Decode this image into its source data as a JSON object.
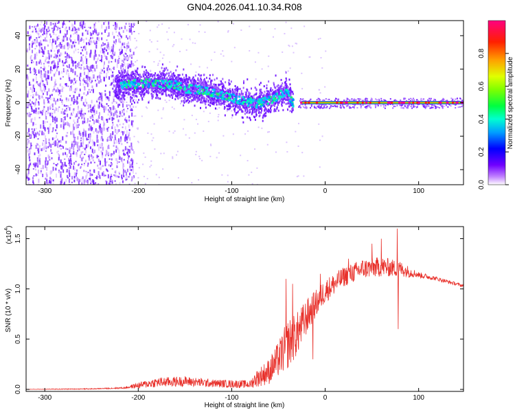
{
  "title": "GN04.2026.041.10.34.R08",
  "chart_data": [
    {
      "type": "heatmap",
      "id": "spectrogram",
      "xlabel": "Height of straight line (km)",
      "ylabel": "Frequency (Hz)",
      "xlim": [
        -320,
        148
      ],
      "ylim": [
        -49,
        49
      ],
      "x_ticks": [
        -300,
        -200,
        -100,
        0,
        100
      ],
      "x_tick_labels": [
        "-300",
        "-200",
        "-100",
        "0",
        "100"
      ],
      "y_ticks": [
        -40,
        -20,
        0,
        20,
        40
      ],
      "y_tick_labels": [
        "-40",
        "-20",
        "0",
        "20",
        "40"
      ],
      "noise_region_x": [
        -320,
        -205
      ],
      "scatter_region_x": [
        -205,
        0
      ],
      "signal_frequency_track": [
        {
          "x": -220,
          "y": 11
        },
        {
          "x": -200,
          "y": 12
        },
        {
          "x": -180,
          "y": 12
        },
        {
          "x": -160,
          "y": 11
        },
        {
          "x": -150,
          "y": 9
        },
        {
          "x": -130,
          "y": 8
        },
        {
          "x": -110,
          "y": 5
        },
        {
          "x": -90,
          "y": 2
        },
        {
          "x": -75,
          "y": 0
        },
        {
          "x": -60,
          "y": 2
        },
        {
          "x": -50,
          "y": 5
        },
        {
          "x": -42,
          "y": 7
        },
        {
          "x": -35,
          "y": 0
        },
        {
          "x": -25,
          "y": -1
        },
        {
          "x": -10,
          "y": 0
        },
        {
          "x": 0,
          "y": 0
        },
        {
          "x": 148,
          "y": 0
        }
      ],
      "constant_line_x": [
        0,
        148
      ],
      "constant_line_y": 0,
      "grid": false
    },
    {
      "type": "colorbar",
      "id": "amplitude-colorbar",
      "label": "Normalized spectral amplitude",
      "range": [
        0,
        1
      ],
      "ticks": [
        0.0,
        0.2,
        0.4,
        0.6,
        0.8
      ],
      "tick_labels": [
        "0.0",
        "0.2",
        "0.4",
        "0.6",
        "0.8"
      ],
      "colors": [
        "#ffffff",
        "#b060ff",
        "#6000ff",
        "#0000ff",
        "#00c0ff",
        "#00ff80",
        "#40ff00",
        "#d0ff00",
        "#ffa000",
        "#ff2000",
        "#ff0080"
      ]
    },
    {
      "type": "line",
      "id": "snr",
      "xlabel": "Height of straight line (km)",
      "ylabel": "SNR (10 * v/v)",
      "y_multiplier_label": "(x10",
      "y_multiplier_exp": "4",
      "xlim": [
        -320,
        148
      ],
      "ylim": [
        -0.02,
        1.62
      ],
      "x_ticks": [
        -300,
        -200,
        -100,
        0,
        100
      ],
      "x_tick_labels": [
        "-300",
        "-200",
        "-100",
        "0",
        "100"
      ],
      "y_ticks": [
        0.0,
        0.5,
        1.0,
        1.5
      ],
      "y_tick_labels": [
        "0.0",
        "0.5",
        "1.0",
        "1.5"
      ],
      "color": "#e8302a",
      "envelope": [
        {
          "x": -320,
          "y": 0.0,
          "amp": 0.003
        },
        {
          "x": -250,
          "y": 0.005,
          "amp": 0.004
        },
        {
          "x": -215,
          "y": 0.015,
          "amp": 0.008
        },
        {
          "x": -200,
          "y": 0.04,
          "amp": 0.03
        },
        {
          "x": -180,
          "y": 0.07,
          "amp": 0.05
        },
        {
          "x": -150,
          "y": 0.08,
          "amp": 0.05
        },
        {
          "x": -120,
          "y": 0.06,
          "amp": 0.04
        },
        {
          "x": -100,
          "y": 0.055,
          "amp": 0.04
        },
        {
          "x": -80,
          "y": 0.05,
          "amp": 0.04
        },
        {
          "x": -75,
          "y": 0.1,
          "amp": 0.08
        },
        {
          "x": -60,
          "y": 0.18,
          "amp": 0.13
        },
        {
          "x": -50,
          "y": 0.3,
          "amp": 0.18
        },
        {
          "x": -40,
          "y": 0.45,
          "amp": 0.25
        },
        {
          "x": -30,
          "y": 0.55,
          "amp": 0.22
        },
        {
          "x": -20,
          "y": 0.72,
          "amp": 0.18
        },
        {
          "x": -10,
          "y": 0.85,
          "amp": 0.14
        },
        {
          "x": 0,
          "y": 0.98,
          "amp": 0.12
        },
        {
          "x": 20,
          "y": 1.12,
          "amp": 0.1
        },
        {
          "x": 40,
          "y": 1.2,
          "amp": 0.1
        },
        {
          "x": 60,
          "y": 1.22,
          "amp": 0.1
        },
        {
          "x": 80,
          "y": 1.2,
          "amp": 0.08
        },
        {
          "x": 100,
          "y": 1.14,
          "amp": 0.03
        },
        {
          "x": 120,
          "y": 1.1,
          "amp": 0.02
        },
        {
          "x": 148,
          "y": 1.03,
          "amp": 0.015
        }
      ],
      "spikes": [
        {
          "x": 77,
          "y": 1.6
        },
        {
          "x": 78,
          "y": 0.6
        },
        {
          "x": 60,
          "y": 1.5
        },
        {
          "x": 50,
          "y": 1.45
        },
        {
          "x": -42,
          "y": 1.1
        },
        {
          "x": -35,
          "y": 1.05
        },
        {
          "x": -5,
          "y": 1.15
        },
        {
          "x": -13,
          "y": 0.3
        },
        {
          "x": 25,
          "y": 1.3
        }
      ],
      "grid": false
    }
  ]
}
